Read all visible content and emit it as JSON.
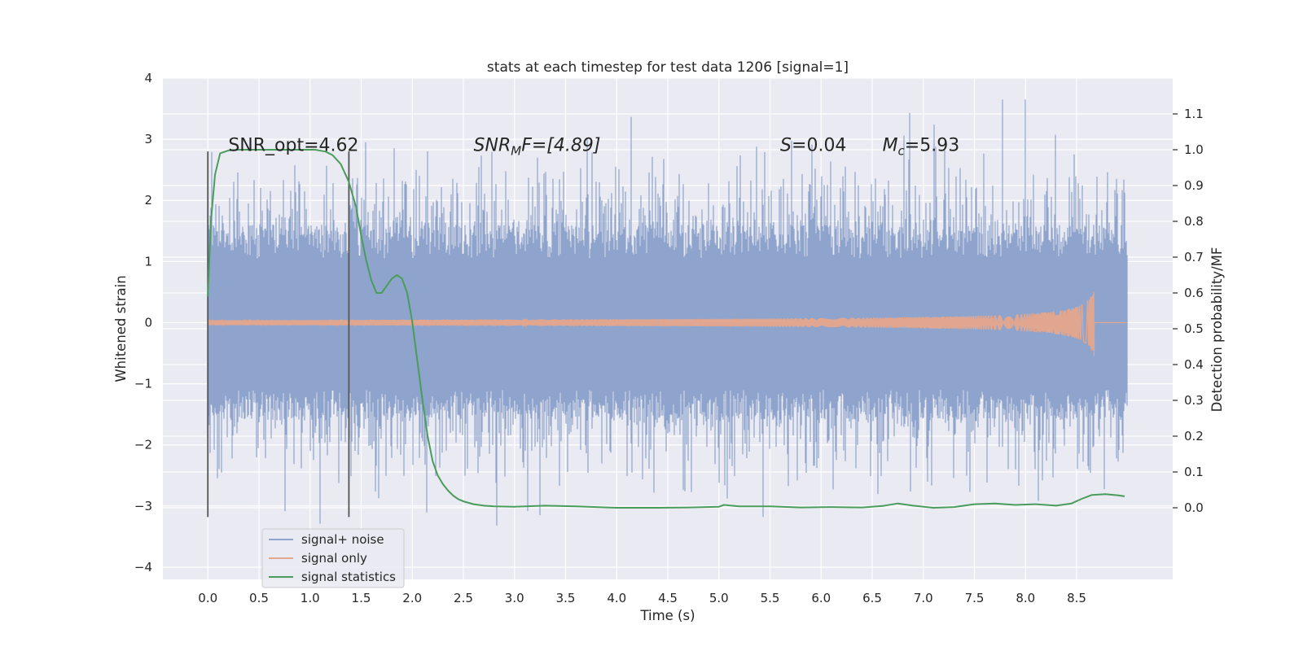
{
  "chart_data": {
    "type": "line",
    "title": "stats at each timestep for test data 1206 [signal=1]",
    "xlabel": "Time (s)",
    "ylabel": "Whitened strain",
    "y2label": "Detection probability/MF",
    "xlim": [
      -0.44,
      9.44
    ],
    "ylim": [
      -4.2,
      4.0
    ],
    "y2lim": [
      -0.2,
      1.2
    ],
    "xticks": [
      0.0,
      0.5,
      1.0,
      1.5,
      2.0,
      2.5,
      3.0,
      3.5,
      4.0,
      4.5,
      5.0,
      5.5,
      6.0,
      6.5,
      7.0,
      7.5,
      8.0,
      8.5
    ],
    "xtick_labels": [
      "0.0",
      "0.5",
      "1.0",
      "1.5",
      "2.0",
      "2.5",
      "3.0",
      "3.5",
      "4.0",
      "4.5",
      "5.0",
      "5.5",
      "6.0",
      "6.5",
      "7.0",
      "7.5",
      "8.0",
      "8.5"
    ],
    "yticks": [
      -4,
      -3,
      -2,
      -1,
      0,
      1,
      2,
      3,
      4
    ],
    "ytick_labels": [
      "−4",
      "−3",
      "−2",
      "−1",
      "0",
      "1",
      "2",
      "3",
      "4"
    ],
    "y2ticks": [
      0.0,
      0.1,
      0.2,
      0.3,
      0.4,
      0.5,
      0.6,
      0.7,
      0.8,
      0.9,
      1.0,
      1.1
    ],
    "y2tick_labels": [
      "0.0",
      "0.1",
      "0.2",
      "0.3",
      "0.4",
      "0.5",
      "0.6",
      "0.7",
      "0.8",
      "0.9",
      "1.0",
      "1.1"
    ],
    "grid": true,
    "noise": {
      "t_start": 0.0,
      "t_end": 8.99,
      "sigma": 1.0,
      "clip_min": -4.0,
      "clip_max": 3.65
    },
    "series": [
      {
        "name": "signal+ noise",
        "axis": "left",
        "color": "#8fa4cc",
        "description": "noisy whitened strain trace between t=0.0 and t=8.99 s"
      },
      {
        "name": "signal only",
        "axis": "left",
        "color": "#e0a68f",
        "chirp": {
          "t_start": 0.0,
          "t_merge": 8.67,
          "peak_amplitude": 0.55
        }
      },
      {
        "name": "signal statistics",
        "axis": "right",
        "color": "#4a9c5c",
        "x": [
          0.0,
          0.03,
          0.07,
          0.12,
          0.2,
          0.3,
          0.5,
          0.7,
          0.9,
          1.05,
          1.15,
          1.22,
          1.3,
          1.38,
          1.45,
          1.5,
          1.55,
          1.6,
          1.65,
          1.7,
          1.75,
          1.8,
          1.85,
          1.9,
          1.95,
          2.0,
          2.05,
          2.1,
          2.15,
          2.2,
          2.25,
          2.3,
          2.35,
          2.4,
          2.45,
          2.5,
          2.6,
          2.7,
          2.8,
          3.0,
          3.3,
          3.6,
          4.0,
          4.4,
          4.7,
          5.0,
          5.05,
          5.2,
          5.5,
          5.8,
          6.1,
          6.4,
          6.6,
          6.75,
          6.9,
          7.1,
          7.3,
          7.5,
          7.7,
          7.9,
          8.1,
          8.3,
          8.45,
          8.55,
          8.65,
          8.78,
          8.9,
          8.97
        ],
        "y": [
          0.59,
          0.8,
          0.93,
          0.99,
          0.998,
          1.0,
          1.0,
          1.0,
          1.0,
          1.0,
          0.995,
          0.985,
          0.96,
          0.91,
          0.84,
          0.76,
          0.69,
          0.635,
          0.6,
          0.6,
          0.62,
          0.64,
          0.65,
          0.64,
          0.6,
          0.52,
          0.41,
          0.3,
          0.2,
          0.13,
          0.09,
          0.066,
          0.048,
          0.034,
          0.024,
          0.018,
          0.01,
          0.006,
          0.004,
          0.003,
          0.006,
          0.004,
          0.0,
          0.0,
          0.001,
          0.003,
          0.008,
          0.004,
          0.004,
          0.001,
          0.002,
          0.001,
          0.005,
          0.012,
          0.006,
          0.0,
          0.002,
          0.01,
          0.012,
          0.008,
          0.01,
          0.006,
          0.012,
          0.025,
          0.036,
          0.038,
          0.035,
          0.032
        ]
      }
    ],
    "vlines": [
      {
        "x": 0.0,
        "ymin": -3.18,
        "ymax": 2.8,
        "color": "#555555"
      },
      {
        "x": 1.38,
        "ymin": -3.18,
        "ymax": 2.8,
        "color": "#555555"
      }
    ],
    "annotations": [
      {
        "label": "SNR_opt=4.62",
        "x": 0.2,
        "y": 2.9
      },
      {
        "base": "SNR",
        "sub": "M",
        "tail": "F=[4.89]",
        "x": 2.6,
        "y": 2.9
      },
      {
        "base": "S",
        "tail": "=0.04",
        "x": 5.6,
        "y": 2.9
      },
      {
        "base": "M",
        "sub": "c",
        "tail": "=5.93",
        "x": 6.6,
        "y": 2.9
      }
    ],
    "legend": {
      "location": "lower-left",
      "entries": [
        "signal+ noise",
        "signal only",
        "signal statistics"
      ]
    }
  },
  "colors": {
    "plot_background": "#eaeaf2",
    "grid": "#ffffff",
    "text": "#262626"
  }
}
